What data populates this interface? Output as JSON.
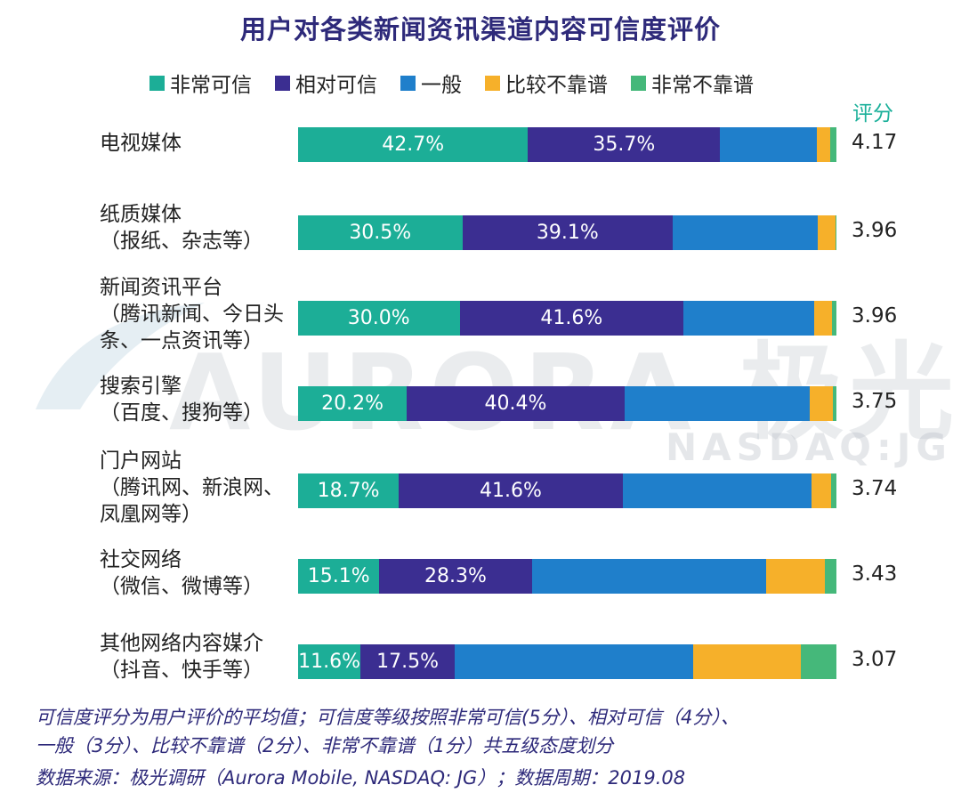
{
  "title": "用户对各类新闻资讯渠道内容可信度评价",
  "score_header": "评分",
  "watermark": {
    "brand": "AURORA",
    "brand_cn": "极光",
    "ticker": "NASDAQ:JG"
  },
  "notes": [
    "可信度评分为用户评价的平均值；可信度等级按照非常可信(5分）、相对可信（4分）、",
    "一般（3分）、比较不靠谱（2分）、非常不靠谱（1分）共五级态度划分",
    "数据来源：极光调研（Aurora Mobile, NASDAQ: JG）；数据周期：2019.08"
  ],
  "chart_data": {
    "type": "bar",
    "orientation": "horizontal",
    "stacked": true,
    "normalized": true,
    "title": "用户对各类新闻资讯渠道内容可信度评价",
    "xlabel": "",
    "ylabel": "",
    "legend_position": "top",
    "categories": [
      {
        "name": "电视媒体",
        "sub": []
      },
      {
        "name": "纸质媒体",
        "sub": [
          "（报纸、杂志等）"
        ]
      },
      {
        "name": "新闻资讯平台",
        "sub": [
          "（腾讯新闻、今日头",
          "条、一点资讯等）"
        ]
      },
      {
        "name": "搜索引擎",
        "sub": [
          "（百度、搜狗等）"
        ]
      },
      {
        "name": "门户网站",
        "sub": [
          "（腾讯网、新浪网、",
          "凤凰网等）"
        ]
      },
      {
        "name": "社交网络",
        "sub": [
          "（微信、微博等）"
        ]
      },
      {
        "name": "其他网络内容媒介",
        "sub": [
          "（抖音、快手等）"
        ]
      }
    ],
    "series": [
      {
        "name": "非常可信",
        "color": "#1cae97",
        "values": [
          42.7,
          30.5,
          30.0,
          20.2,
          18.7,
          15.1,
          11.6
        ],
        "labeled": true
      },
      {
        "name": "相对可信",
        "color": "#3b2e91",
        "values": [
          35.7,
          39.1,
          41.6,
          40.4,
          41.6,
          28.3,
          17.5
        ],
        "labeled": true
      },
      {
        "name": "一般",
        "color": "#1f7fcb",
        "values": [
          18.0,
          27.0,
          24.2,
          34.4,
          35.1,
          43.5,
          44.3
        ],
        "labeled": false
      },
      {
        "name": "比较不靠谱",
        "color": "#f6b02a",
        "values": [
          2.5,
          3.2,
          3.4,
          4.4,
          3.6,
          10.9,
          20.0
        ],
        "labeled": false
      },
      {
        "name": "非常不靠谱",
        "color": "#45b87a",
        "values": [
          1.1,
          0.2,
          0.8,
          0.6,
          1.0,
          2.2,
          6.6
        ],
        "labeled": false
      }
    ],
    "scores": [
      "4.17",
      "3.96",
      "3.96",
      "3.75",
      "3.74",
      "3.43",
      "3.07"
    ],
    "xlim": [
      0,
      100
    ]
  }
}
